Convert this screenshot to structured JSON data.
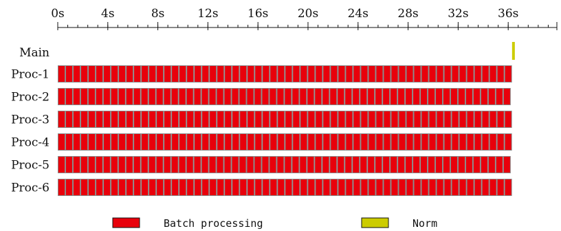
{
  "chart_data": {
    "type": "gantt",
    "x_unit": "s",
    "x_range": [
      0,
      40
    ],
    "major_ticks": [
      0,
      4,
      8,
      12,
      16,
      20,
      24,
      28,
      32,
      36
    ],
    "tick_labels": [
      "0s",
      "4s",
      "8s",
      "12s",
      "16s",
      "20s",
      "24s",
      "28s",
      "32s",
      "36s"
    ],
    "minor_tick_step": 0.8,
    "rows": [
      {
        "label": "Main",
        "segments": [
          {
            "category": "norm",
            "start": 36.2,
            "end": 36.5
          }
        ]
      },
      {
        "label": "Proc-1",
        "category": "batch",
        "start": 0,
        "end": 36.3,
        "count": 60
      },
      {
        "label": "Proc-2",
        "category": "batch",
        "start": 0,
        "end": 36.2,
        "count": 60
      },
      {
        "label": "Proc-3",
        "category": "batch",
        "start": 0,
        "end": 36.3,
        "count": 60
      },
      {
        "label": "Proc-4",
        "category": "batch",
        "start": 0,
        "end": 36.3,
        "count": 60
      },
      {
        "label": "Proc-5",
        "category": "batch",
        "start": 0,
        "end": 36.2,
        "count": 60
      },
      {
        "label": "Proc-6",
        "category": "batch",
        "start": 0,
        "end": 36.3,
        "count": 60
      }
    ],
    "legend": [
      {
        "key": "batch",
        "label": "Batch processing",
        "color": "#e8000b"
      },
      {
        "key": "norm",
        "label": "Norm",
        "color": "#cccc00"
      }
    ],
    "colors": {
      "batch": "#e8000b",
      "batch_stroke": "#8a8a8a",
      "norm": "#cccc00"
    }
  }
}
